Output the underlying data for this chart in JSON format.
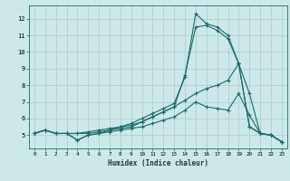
{
  "xlabel": "Humidex (Indice chaleur)",
  "bg_color": "#cce8e8",
  "line_color": "#1a6b6b",
  "grid_color": "#aacccc",
  "xlim": [
    -0.5,
    23.5
  ],
  "ylim": [
    4.2,
    12.8
  ],
  "xticks": [
    0,
    1,
    2,
    3,
    4,
    5,
    6,
    7,
    8,
    9,
    10,
    11,
    12,
    13,
    14,
    15,
    16,
    17,
    18,
    19,
    20,
    21,
    22,
    23
  ],
  "yticks": [
    5,
    6,
    7,
    8,
    9,
    10,
    11,
    12
  ],
  "lines": [
    {
      "x": [
        0,
        1,
        2,
        3,
        4,
        5,
        6,
        7,
        8,
        9,
        10,
        11,
        12,
        13,
        14,
        15,
        16,
        17,
        18,
        19,
        20,
        21,
        22,
        23
      ],
      "y": [
        5.1,
        5.3,
        5.1,
        5.1,
        4.7,
        5.0,
        5.1,
        5.2,
        5.3,
        5.4,
        5.5,
        5.7,
        5.9,
        6.1,
        6.5,
        7.0,
        6.7,
        6.6,
        6.5,
        7.5,
        6.2,
        5.1,
        5.0,
        4.6
      ]
    },
    {
      "x": [
        0,
        1,
        2,
        3,
        4,
        5,
        6,
        7,
        8,
        9,
        10,
        11,
        12,
        13,
        14,
        15,
        16,
        17,
        18,
        19,
        20,
        21,
        22,
        23
      ],
      "y": [
        5.1,
        5.3,
        5.1,
        5.1,
        5.1,
        5.1,
        5.2,
        5.3,
        5.4,
        5.5,
        5.8,
        6.1,
        6.4,
        6.7,
        8.6,
        11.5,
        11.6,
        11.3,
        10.8,
        9.3,
        5.5,
        5.1,
        5.0,
        4.6
      ]
    },
    {
      "x": [
        0,
        1,
        2,
        3,
        4,
        5,
        6,
        7,
        8,
        9,
        10,
        11,
        12,
        13,
        14,
        15,
        16,
        17,
        18,
        19,
        20,
        21,
        22,
        23
      ],
      "y": [
        5.1,
        5.3,
        5.1,
        5.1,
        4.7,
        5.0,
        5.1,
        5.3,
        5.5,
        5.7,
        6.0,
        6.3,
        6.6,
        6.9,
        8.5,
        12.3,
        11.7,
        11.5,
        11.0,
        9.3,
        5.5,
        5.1,
        5.0,
        4.6
      ]
    },
    {
      "x": [
        0,
        1,
        2,
        3,
        4,
        5,
        6,
        7,
        8,
        9,
        10,
        11,
        12,
        13,
        14,
        15,
        16,
        17,
        18,
        19,
        20,
        21,
        22,
        23
      ],
      "y": [
        5.1,
        5.3,
        5.1,
        5.1,
        5.1,
        5.2,
        5.3,
        5.4,
        5.5,
        5.6,
        5.8,
        6.1,
        6.4,
        6.7,
        7.1,
        7.5,
        7.8,
        8.0,
        8.3,
        9.3,
        7.5,
        5.1,
        5.0,
        4.6
      ]
    }
  ]
}
